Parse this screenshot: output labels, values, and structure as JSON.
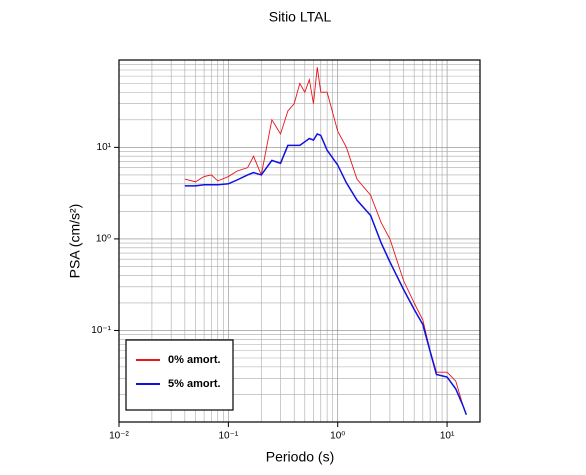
{
  "chart_data": {
    "type": "line",
    "title": "Sitio LTAL",
    "xlabel": "Periodo (s)",
    "ylabel": "PSA (cm/s²)",
    "x": [
      0.04,
      0.05,
      0.06,
      0.07,
      0.08,
      0.1,
      0.12,
      0.15,
      0.17,
      0.2,
      0.25,
      0.3,
      0.35,
      0.4,
      0.45,
      0.5,
      0.55,
      0.6,
      0.65,
      0.7,
      0.8,
      1.0,
      1.2,
      1.5,
      2,
      2.5,
      3,
      4,
      5,
      6,
      7,
      8,
      10,
      12,
      14,
      15
    ],
    "series": [
      {
        "name": "0% amort.",
        "color": "#e8141b",
        "values": [
          4.5,
          4.2,
          4.8,
          5,
          4.3,
          4.8,
          5.5,
          6,
          8,
          5,
          20,
          14,
          25,
          30,
          50,
          40,
          55,
          30,
          75,
          40,
          40,
          15,
          10,
          4.5,
          3,
          1.5,
          1,
          0.35,
          0.2,
          0.13,
          0.06,
          0.035,
          0.035,
          0.028,
          0.015,
          null
        ]
      },
      {
        "name": "5% amort.",
        "color": "#1010e0",
        "values": [
          3.8,
          3.8,
          3.9,
          3.9,
          3.9,
          4.0,
          4.4,
          5.0,
          5.3,
          5.0,
          7.2,
          6.7,
          10.5,
          10.5,
          10.5,
          11.5,
          12.5,
          12,
          14,
          13.5,
          9.3,
          6.4,
          4.1,
          2.65,
          1.8,
          0.9,
          0.56,
          0.28,
          0.17,
          0.116,
          0.059,
          0.033,
          0.031,
          0.023,
          0.015,
          0.012
        ]
      }
    ],
    "xlim": [
      0.01,
      20
    ],
    "ylim": [
      0.01,
      90
    ],
    "xticks": [
      {
        "value": 0.01,
        "label": "10⁻²"
      },
      {
        "value": 0.1,
        "label": "10⁻¹"
      },
      {
        "value": 1,
        "label": "10⁰"
      },
      {
        "value": 10,
        "label": "10¹"
      }
    ],
    "yticks": [
      {
        "value": 0.1,
        "label": "10⁻¹"
      },
      {
        "value": 1,
        "label": "10⁰"
      },
      {
        "value": 10,
        "label": "10¹"
      }
    ],
    "xscale": "log",
    "yscale": "log",
    "grid": true,
    "legend": "lower left"
  }
}
